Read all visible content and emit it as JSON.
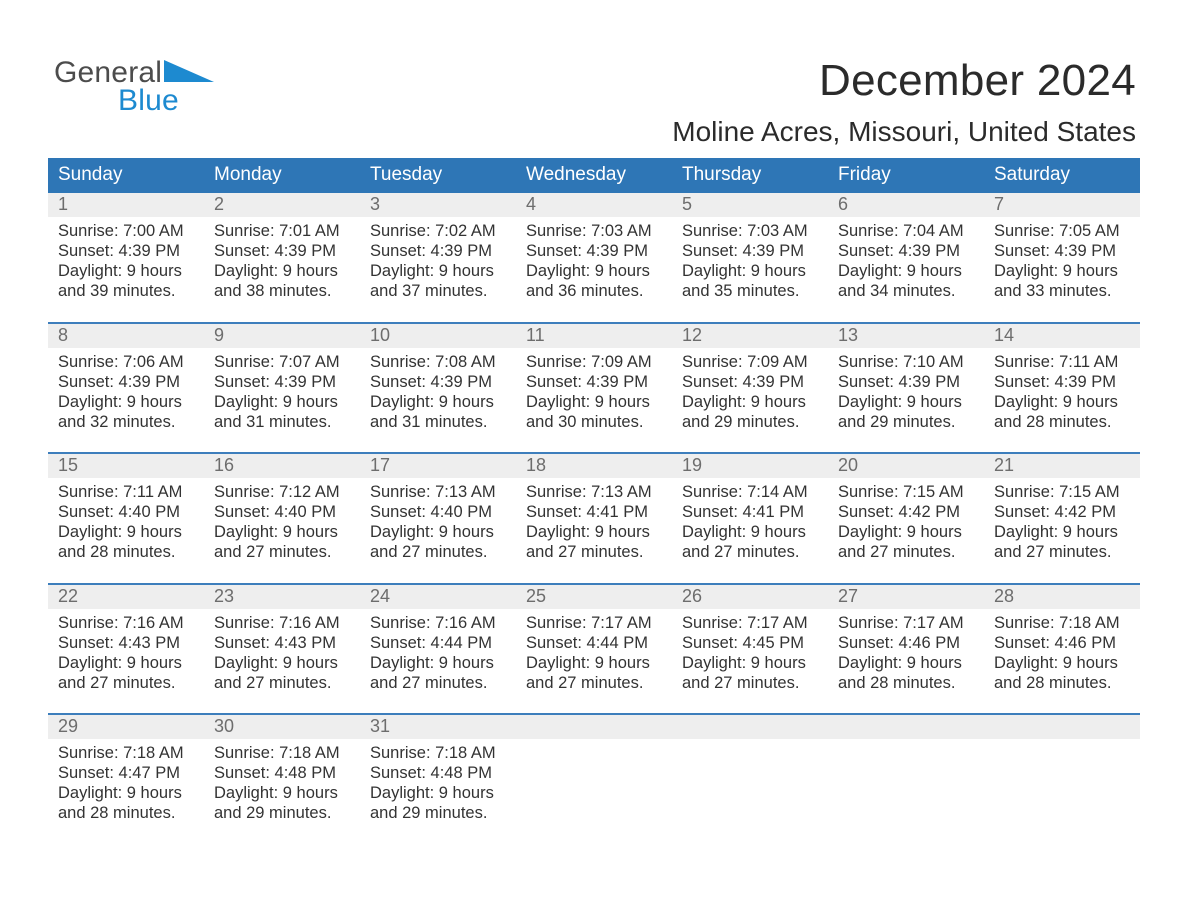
{
  "logo": {
    "part1": "General",
    "part2": "Blue"
  },
  "title": "December 2024",
  "subtitle": "Moline Acres, Missouri, United States",
  "colors": {
    "header_bg": "#2e76b6",
    "header_text": "#ffffff",
    "row_rule": "#3d7ebc",
    "daynum_bg": "#eeeeee",
    "daynum_text": "#6d6d6d",
    "body_text": "#333333",
    "title_text": "#2b2b2b",
    "logo_gray": "#4c4c4c",
    "logo_blue": "#1d8ad0",
    "page_bg": "#ffffff"
  },
  "days_of_week": [
    "Sunday",
    "Monday",
    "Tuesday",
    "Wednesday",
    "Thursday",
    "Friday",
    "Saturday"
  ],
  "weeks": [
    [
      {
        "n": "1",
        "sunrise": "7:00 AM",
        "sunset": "4:39 PM",
        "dl": "9 hours and 39 minutes."
      },
      {
        "n": "2",
        "sunrise": "7:01 AM",
        "sunset": "4:39 PM",
        "dl": "9 hours and 38 minutes."
      },
      {
        "n": "3",
        "sunrise": "7:02 AM",
        "sunset": "4:39 PM",
        "dl": "9 hours and 37 minutes."
      },
      {
        "n": "4",
        "sunrise": "7:03 AM",
        "sunset": "4:39 PM",
        "dl": "9 hours and 36 minutes."
      },
      {
        "n": "5",
        "sunrise": "7:03 AM",
        "sunset": "4:39 PM",
        "dl": "9 hours and 35 minutes."
      },
      {
        "n": "6",
        "sunrise": "7:04 AM",
        "sunset": "4:39 PM",
        "dl": "9 hours and 34 minutes."
      },
      {
        "n": "7",
        "sunrise": "7:05 AM",
        "sunset": "4:39 PM",
        "dl": "9 hours and 33 minutes."
      }
    ],
    [
      {
        "n": "8",
        "sunrise": "7:06 AM",
        "sunset": "4:39 PM",
        "dl": "9 hours and 32 minutes."
      },
      {
        "n": "9",
        "sunrise": "7:07 AM",
        "sunset": "4:39 PM",
        "dl": "9 hours and 31 minutes."
      },
      {
        "n": "10",
        "sunrise": "7:08 AM",
        "sunset": "4:39 PM",
        "dl": "9 hours and 31 minutes."
      },
      {
        "n": "11",
        "sunrise": "7:09 AM",
        "sunset": "4:39 PM",
        "dl": "9 hours and 30 minutes."
      },
      {
        "n": "12",
        "sunrise": "7:09 AM",
        "sunset": "4:39 PM",
        "dl": "9 hours and 29 minutes."
      },
      {
        "n": "13",
        "sunrise": "7:10 AM",
        "sunset": "4:39 PM",
        "dl": "9 hours and 29 minutes."
      },
      {
        "n": "14",
        "sunrise": "7:11 AM",
        "sunset": "4:39 PM",
        "dl": "9 hours and 28 minutes."
      }
    ],
    [
      {
        "n": "15",
        "sunrise": "7:11 AM",
        "sunset": "4:40 PM",
        "dl": "9 hours and 28 minutes."
      },
      {
        "n": "16",
        "sunrise": "7:12 AM",
        "sunset": "4:40 PM",
        "dl": "9 hours and 27 minutes."
      },
      {
        "n": "17",
        "sunrise": "7:13 AM",
        "sunset": "4:40 PM",
        "dl": "9 hours and 27 minutes."
      },
      {
        "n": "18",
        "sunrise": "7:13 AM",
        "sunset": "4:41 PM",
        "dl": "9 hours and 27 minutes."
      },
      {
        "n": "19",
        "sunrise": "7:14 AM",
        "sunset": "4:41 PM",
        "dl": "9 hours and 27 minutes."
      },
      {
        "n": "20",
        "sunrise": "7:15 AM",
        "sunset": "4:42 PM",
        "dl": "9 hours and 27 minutes."
      },
      {
        "n": "21",
        "sunrise": "7:15 AM",
        "sunset": "4:42 PM",
        "dl": "9 hours and 27 minutes."
      }
    ],
    [
      {
        "n": "22",
        "sunrise": "7:16 AM",
        "sunset": "4:43 PM",
        "dl": "9 hours and 27 minutes."
      },
      {
        "n": "23",
        "sunrise": "7:16 AM",
        "sunset": "4:43 PM",
        "dl": "9 hours and 27 minutes."
      },
      {
        "n": "24",
        "sunrise": "7:16 AM",
        "sunset": "4:44 PM",
        "dl": "9 hours and 27 minutes."
      },
      {
        "n": "25",
        "sunrise": "7:17 AM",
        "sunset": "4:44 PM",
        "dl": "9 hours and 27 minutes."
      },
      {
        "n": "26",
        "sunrise": "7:17 AM",
        "sunset": "4:45 PM",
        "dl": "9 hours and 27 minutes."
      },
      {
        "n": "27",
        "sunrise": "7:17 AM",
        "sunset": "4:46 PM",
        "dl": "9 hours and 28 minutes."
      },
      {
        "n": "28",
        "sunrise": "7:18 AM",
        "sunset": "4:46 PM",
        "dl": "9 hours and 28 minutes."
      }
    ],
    [
      {
        "n": "29",
        "sunrise": "7:18 AM",
        "sunset": "4:47 PM",
        "dl": "9 hours and 28 minutes."
      },
      {
        "n": "30",
        "sunrise": "7:18 AM",
        "sunset": "4:48 PM",
        "dl": "9 hours and 29 minutes."
      },
      {
        "n": "31",
        "sunrise": "7:18 AM",
        "sunset": "4:48 PM",
        "dl": "9 hours and 29 minutes."
      },
      null,
      null,
      null,
      null
    ]
  ],
  "labels": {
    "sunrise_prefix": "Sunrise: ",
    "sunset_prefix": "Sunset: ",
    "daylight_prefix": "Daylight: "
  }
}
